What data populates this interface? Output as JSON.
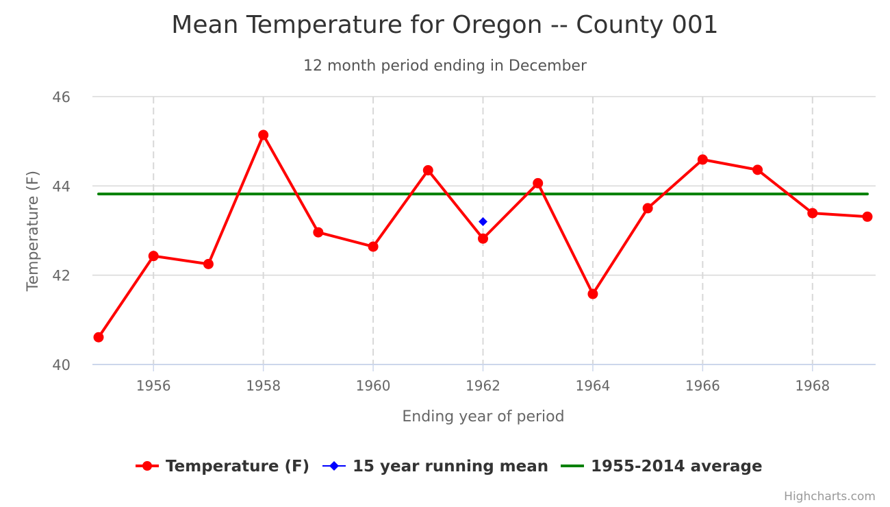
{
  "chart_data": {
    "type": "line",
    "title": "Mean Temperature for Oregon -- County 001",
    "subtitle": "12 month period ending in December",
    "xlabel": "Ending year of period",
    "ylabel": "Temperature (F)",
    "xlim": [
      1955,
      1969
    ],
    "ylim": [
      40,
      46
    ],
    "x_ticks": [
      1956,
      1958,
      1960,
      1962,
      1964,
      1966,
      1968
    ],
    "y_ticks": [
      40,
      42,
      44,
      46
    ],
    "grid": true,
    "legend_position": "bottom-center",
    "series": [
      {
        "name": "Temperature (F)",
        "color": "#ff0000",
        "marker": "circle",
        "x": [
          1955,
          1956,
          1957,
          1958,
          1959,
          1960,
          1961,
          1962,
          1963,
          1964,
          1965,
          1966,
          1967,
          1968,
          1969
        ],
        "values": [
          40.61,
          42.43,
          42.25,
          45.14,
          42.96,
          42.64,
          44.35,
          42.82,
          44.06,
          41.58,
          43.5,
          44.59,
          44.36,
          43.39,
          43.31
        ]
      },
      {
        "name": "15 year running mean",
        "color": "#0000ff",
        "marker": "diamond",
        "x": [
          1962
        ],
        "values": [
          43.2
        ]
      },
      {
        "name": "1955-2014 average",
        "color": "#008000",
        "marker": "none",
        "x": [
          1955,
          1969
        ],
        "values": [
          43.82,
          43.82
        ]
      }
    ]
  },
  "credits": "Highcharts.com"
}
